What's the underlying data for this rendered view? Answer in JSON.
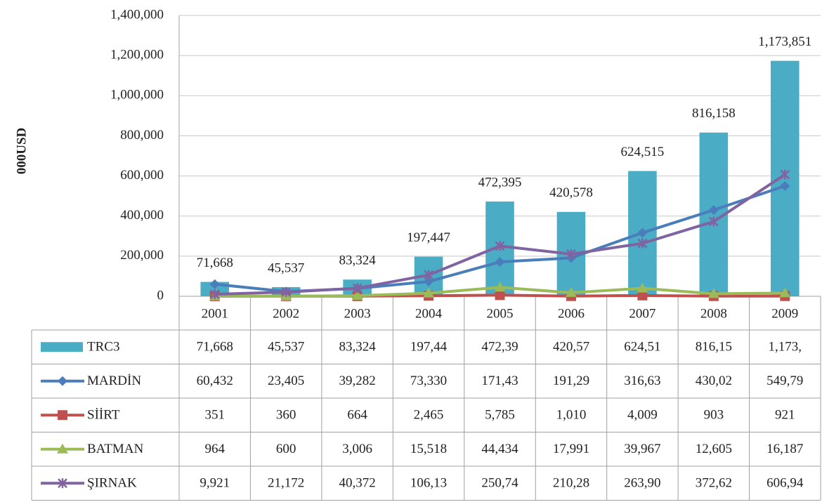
{
  "chart_data": {
    "type": "bar",
    "y_axis_label": "000USD",
    "categories": [
      "2001",
      "2002",
      "2003",
      "2004",
      "2005",
      "2006",
      "2007",
      "2008",
      "2009"
    ],
    "ylim": [
      0,
      1400000
    ],
    "yticks": [
      0,
      {
        "value": 200000,
        "label": "200,000"
      },
      {
        "value": 400000,
        "label": "400,000"
      },
      {
        "value": 600000,
        "label": "600,000"
      },
      {
        "value": 800000,
        "label": "800,000"
      },
      {
        "value": 1000000,
        "label": "1,000,000"
      },
      {
        "value": 1200000,
        "label": "1,200,000"
      },
      {
        "value": 1400000,
        "label": "1,400,000"
      }
    ],
    "grid": true,
    "series": [
      {
        "name": "TRC3",
        "type": "bar",
        "color": "#4bacc6",
        "values": [
          71668,
          45537,
          83324,
          197447,
          472395,
          420578,
          624515,
          816158,
          1173851
        ],
        "value_labels": [
          "71,668",
          "45,537",
          "83,324",
          "197,447",
          "472,395",
          "420,578",
          "624,515",
          "816,158",
          "1,173,851"
        ],
        "table_labels": [
          "71,668",
          "45,537",
          "83,324",
          "197,44",
          "472,39",
          "420,57",
          "624,51",
          "816,15",
          "1,173,"
        ]
      },
      {
        "name": "MARDİN",
        "type": "line",
        "marker": "diamond",
        "color": "#4a7ebb",
        "values": [
          60432,
          23405,
          39282,
          73330,
          171430,
          191290,
          316630,
          430020,
          549790
        ],
        "table_labels": [
          "60,432",
          "23,405",
          "39,282",
          "73,330",
          "171,43",
          "191,29",
          "316,63",
          "430,02",
          "549,79"
        ]
      },
      {
        "name": "SİİRT",
        "type": "line",
        "marker": "square",
        "color": "#c0504d",
        "values": [
          351,
          360,
          664,
          2465,
          5785,
          1010,
          4009,
          903,
          921
        ],
        "table_labels": [
          "351",
          "360",
          "664",
          "2,465",
          "5,785",
          "1,010",
          "4,009",
          "903",
          "921"
        ]
      },
      {
        "name": "BATMAN",
        "type": "line",
        "marker": "triangle",
        "color": "#9bbb59",
        "values": [
          964,
          600,
          3006,
          15518,
          44434,
          17991,
          39967,
          12605,
          16187
        ],
        "table_labels": [
          "964",
          "600",
          "3,006",
          "15,518",
          "44,434",
          "17,991",
          "39,967",
          "12,605",
          "16,187"
        ]
      },
      {
        "name": "ŞIRNAK",
        "type": "line",
        "marker": "star",
        "color": "#8064a2",
        "values": [
          9921,
          21172,
          40372,
          106130,
          250740,
          210280,
          263900,
          372620,
          606940
        ],
        "table_labels": [
          "9,921",
          "21,172",
          "40,372",
          "106,13",
          "250,74",
          "210,28",
          "263,90",
          "372,62",
          "606,94"
        ]
      }
    ]
  }
}
